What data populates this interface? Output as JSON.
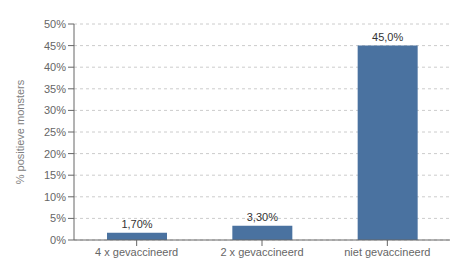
{
  "chart_data": {
    "type": "bar",
    "categories": [
      "4 x gevaccineerd",
      "2 x gevaccineerd",
      "niet gevaccineerd"
    ],
    "values": [
      1.7,
      3.3,
      45.0
    ],
    "value_labels": [
      "1,70%",
      "3,30%",
      "45,0%"
    ],
    "data_labels": true,
    "color": "#4a72a0",
    "ylabel": "% positieve monsters",
    "ylim": [
      0,
      50
    ],
    "yticks": [
      {
        "value": 0,
        "label": "0%"
      },
      {
        "value": 5,
        "label": "5%"
      },
      {
        "value": 10,
        "label": "10%"
      },
      {
        "value": 15,
        "label": "15%"
      },
      {
        "value": 20,
        "label": "20%"
      },
      {
        "value": 25,
        "label": "25%"
      },
      {
        "value": 30,
        "label": "30%"
      },
      {
        "value": 35,
        "label": "35%"
      },
      {
        "value": 40,
        "label": "40%"
      },
      {
        "value": 45,
        "label": "45%"
      },
      {
        "value": 50,
        "label": "50%"
      }
    ],
    "grid": true
  }
}
